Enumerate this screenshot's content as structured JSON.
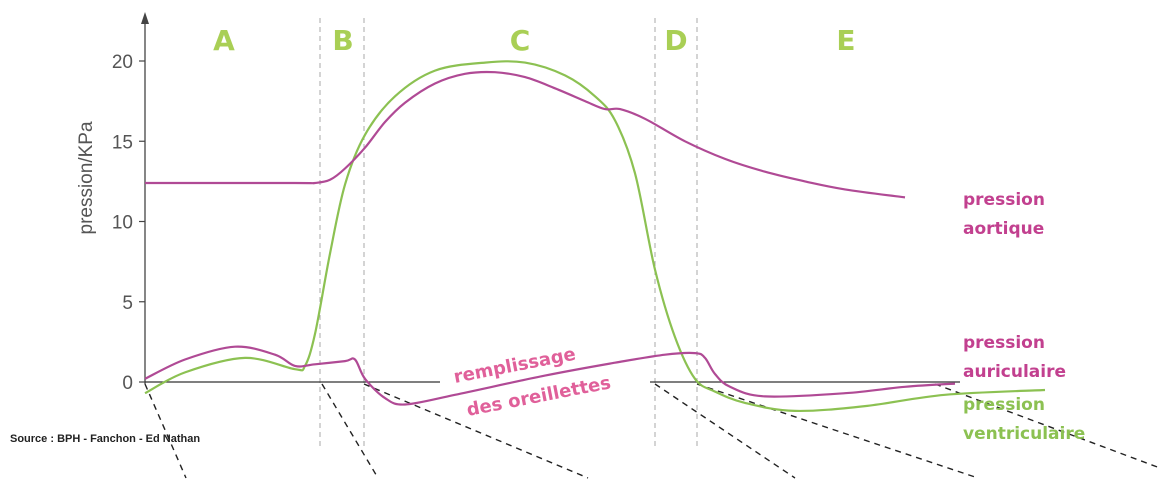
{
  "chart_data": {
    "type": "line",
    "ylabel": "pression/KPa",
    "ylim": [
      0,
      22
    ],
    "yticks": [
      "0",
      "5",
      "10",
      "15",
      "20"
    ],
    "phases": [
      "A",
      "B",
      "C",
      "D",
      "E"
    ],
    "series": [
      {
        "name": "aortique",
        "label_lines": [
          "pression",
          "aortique"
        ],
        "color": "#b04a95",
        "points": [
          [
            0,
            12.4
          ],
          [
            150,
            12.4
          ],
          [
            170,
            12.4
          ],
          [
            185,
            12.6
          ],
          [
            200,
            13.3
          ],
          [
            220,
            14.6
          ],
          [
            240,
            16.2
          ],
          [
            260,
            17.4
          ],
          [
            290,
            18.6
          ],
          [
            320,
            19.2
          ],
          [
            350,
            19.3
          ],
          [
            380,
            19.0
          ],
          [
            410,
            18.3
          ],
          [
            440,
            17.5
          ],
          [
            460,
            17.0
          ],
          [
            475,
            17.0
          ],
          [
            500,
            16.4
          ],
          [
            540,
            15.0
          ],
          [
            580,
            13.9
          ],
          [
            620,
            13.1
          ],
          [
            660,
            12.5
          ],
          [
            700,
            12.0
          ],
          [
            760,
            11.5
          ]
        ]
      },
      {
        "name": "auriculaire",
        "label_lines": [
          "pression",
          "auriculaire"
        ],
        "color": "#b04a95",
        "points": [
          [
            0,
            0.2
          ],
          [
            40,
            1.4
          ],
          [
            90,
            2.2
          ],
          [
            130,
            1.7
          ],
          [
            150,
            1.0
          ],
          [
            170,
            1.1
          ],
          [
            200,
            1.3
          ],
          [
            210,
            1.4
          ],
          [
            220,
            0.2
          ],
          [
            240,
            -1.0
          ],
          [
            260,
            -1.4
          ],
          [
            310,
            -0.8
          ],
          [
            400,
            0.4
          ],
          [
            470,
            1.2
          ],
          [
            520,
            1.7
          ],
          [
            550,
            1.8
          ],
          [
            560,
            1.5
          ],
          [
            570,
            0.5
          ],
          [
            585,
            -0.3
          ],
          [
            620,
            -0.9
          ],
          [
            700,
            -0.7
          ],
          [
            760,
            -0.3
          ],
          [
            810,
            -0.1
          ]
        ]
      },
      {
        "name": "ventriculaire",
        "label_lines": [
          "pression",
          "ventriculaire"
        ],
        "color": "#8cc152",
        "points": [
          [
            0,
            -0.7
          ],
          [
            40,
            0.6
          ],
          [
            100,
            1.5
          ],
          [
            150,
            0.8
          ],
          [
            160,
            1.0
          ],
          [
            170,
            3.0
          ],
          [
            185,
            8.0
          ],
          [
            200,
            12.3
          ],
          [
            220,
            15.4
          ],
          [
            250,
            17.8
          ],
          [
            290,
            19.4
          ],
          [
            340,
            19.9
          ],
          [
            380,
            19.9
          ],
          [
            420,
            19.1
          ],
          [
            450,
            17.8
          ],
          [
            470,
            16.3
          ],
          [
            490,
            13.0
          ],
          [
            510,
            7.0
          ],
          [
            530,
            2.8
          ],
          [
            550,
            0.2
          ],
          [
            570,
            -0.6
          ],
          [
            600,
            -1.3
          ],
          [
            650,
            -1.8
          ],
          [
            720,
            -1.5
          ],
          [
            800,
            -0.8
          ],
          [
            900,
            -0.5
          ]
        ]
      }
    ],
    "annotations": [
      {
        "text_lines": [
          "remplissage",
          "des oreillettes"
        ],
        "color": "#e0609a"
      }
    ],
    "source": "Source : BPH - Fanchon - Ed Nathan",
    "grid": false
  }
}
